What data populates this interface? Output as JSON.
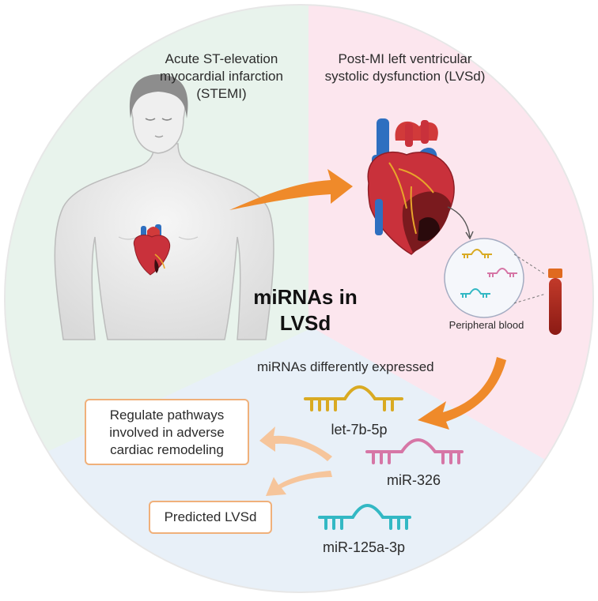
{
  "labels": {
    "stemi": "Acute ST-elevation myocardial infarction (STEMI)",
    "lvsd": "Post-MI left ventricular systolic dysfunction (LVSd)",
    "title": "miRNAs in LVSd",
    "peripheral_blood": "Peripheral blood",
    "expressed": "miRNAs differently expressed",
    "outcome_pathways": "Regulate pathways involved in adverse cardiac remodeling",
    "outcome_predicted": "Predicted LVSd"
  },
  "mirnas": [
    {
      "name": "let-7b-5p",
      "color": "#d9aa22"
    },
    {
      "name": "miR-326",
      "color": "#d676a6"
    },
    {
      "name": "miR-125a-3p",
      "color": "#33b8c4"
    }
  ],
  "colors": {
    "sector_green": "#e8f3ec",
    "sector_pink": "#fce6ee",
    "sector_blue": "#e8f0f8",
    "arrow_orange": "#ef8a2a",
    "arrow_light": "#f6c59b",
    "box_border": "#f0b07a",
    "heart_red": "#c9313b",
    "vessel_blue": "#2e6fc0"
  }
}
